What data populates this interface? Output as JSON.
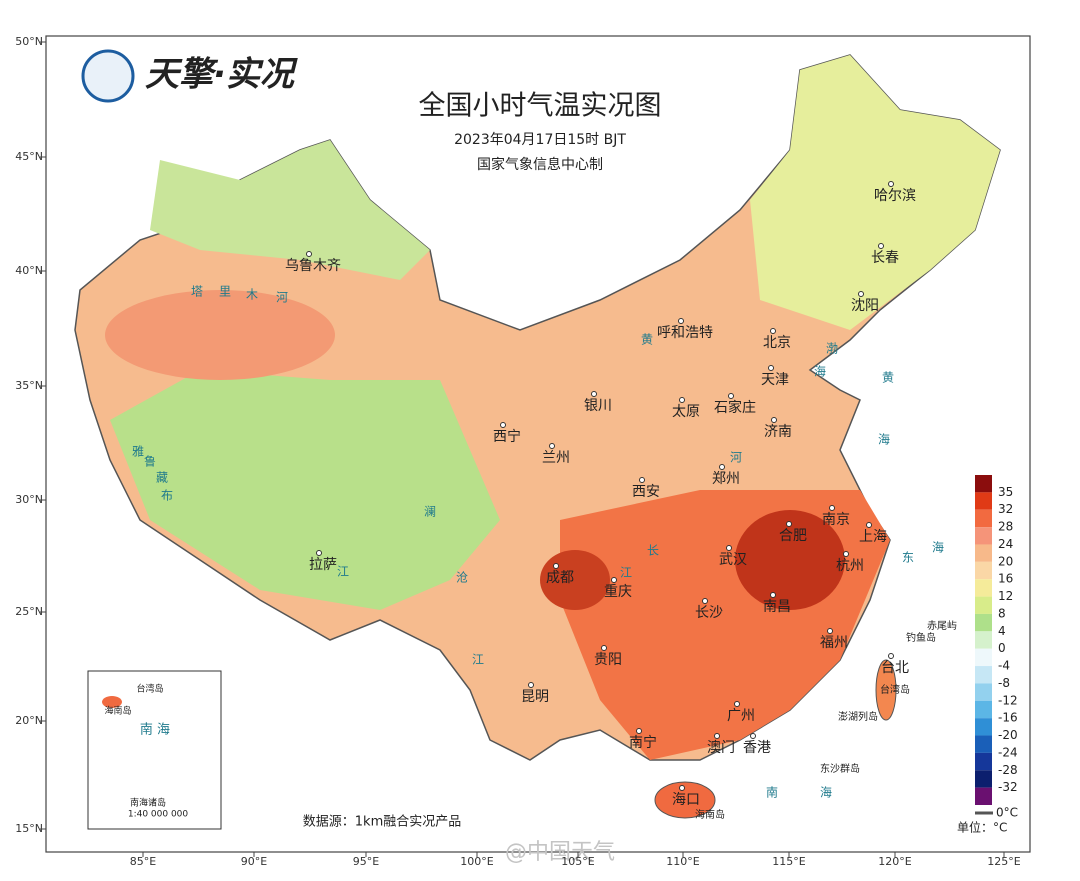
{
  "header": {
    "logo": "天擎·实况",
    "title": "全国小时气温实况图",
    "time": "2023年04月17日15时 BJT",
    "producer": "国家气象信息中心制"
  },
  "axes": {
    "lat_ticks": [
      "50°N",
      "45°N",
      "40°N",
      "35°N",
      "30°N",
      "25°N",
      "20°N",
      "15°N"
    ],
    "lon_ticks": [
      "85°E",
      "90°E",
      "95°E",
      "100°E",
      "105°E",
      "110°E",
      "115°E",
      "120°E",
      "125°E"
    ]
  },
  "cities": [
    "乌鲁木齐",
    "哈尔滨",
    "长春",
    "沈阳",
    "呼和浩特",
    "北京",
    "天津",
    "银川",
    "太原",
    "石家庄",
    "济南",
    "西宁",
    "兰州",
    "郑州",
    "西安",
    "南京",
    "合肥",
    "上海",
    "武汉",
    "杭州",
    "成都",
    "重庆",
    "拉萨",
    "长沙",
    "南昌",
    "福州",
    "贵阳",
    "台北",
    "昆明",
    "南宁",
    "广州",
    "澳门",
    "香港",
    "海口"
  ],
  "geo_labels": [
    "塔",
    "里",
    "木",
    "河",
    "渤",
    "海",
    "黄",
    "海",
    "东",
    "海",
    "南",
    "海",
    "黄",
    "河",
    "长",
    "江",
    "澜",
    "沧",
    "江",
    "雅",
    "鲁",
    "藏",
    "布",
    "江",
    "赤尾屿",
    "钓鱼岛",
    "台湾岛",
    "澎湖列岛",
    "东沙群岛",
    "海南岛"
  ],
  "legend": {
    "labels": [
      35,
      32,
      28,
      24,
      20,
      16,
      12,
      8,
      4,
      0,
      -4,
      -8,
      -12,
      -16,
      -20,
      -24,
      -28,
      -32
    ],
    "colors": [
      "#8b0d0d",
      "#e03a16",
      "#f26a40",
      "#f59479",
      "#f7b98a",
      "#fad7a6",
      "#f5eb9a",
      "#d8ec8a",
      "#aee08a",
      "#d5f1cc",
      "#eef8fb",
      "#c6e7f5",
      "#93d1ee",
      "#5cb6e6",
      "#2f8fd6",
      "#1a5fb8",
      "#15379a",
      "#0c1f6e",
      "#6a1070"
    ],
    "bottom_label": "0°C",
    "unit": "单位：°C"
  },
  "source": "数据源：1km融合实况产品",
  "inset": {
    "labels": [
      "台湾岛",
      "海南岛",
      "南 海",
      "南海诸岛",
      "1:40 000 000"
    ]
  },
  "watermark": "@中国天气"
}
